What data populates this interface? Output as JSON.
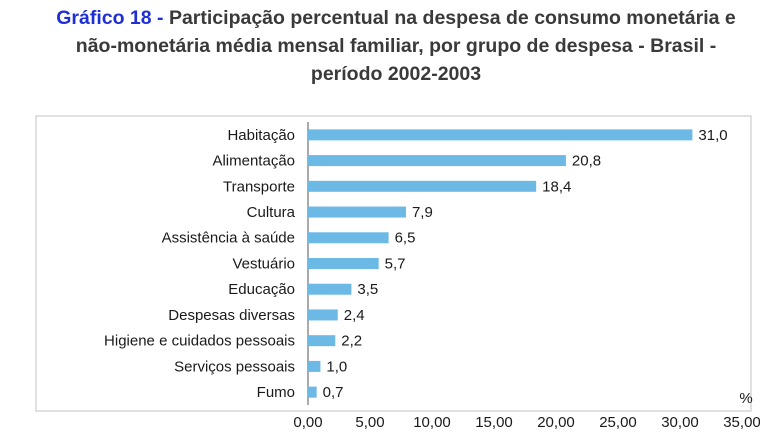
{
  "chart_data": {
    "type": "barh",
    "title_label": "Gráfico 18 -",
    "title": "Participação percentual na despesa de consumo monetária e não-monetária média mensal familiar, por grupo de despesa - Brasil - período 2002-2003",
    "xlabel": "%",
    "categories": [
      "Habitação",
      "Alimentação",
      "Transporte",
      "Cultura",
      "Assistência à saúde",
      "Vestuário",
      "Educação",
      "Despesas diversas",
      "Higiene e cuidados pessoais",
      "Serviços pessoais",
      "Fumo"
    ],
    "values": [
      31.0,
      20.8,
      18.4,
      7.9,
      6.5,
      5.7,
      3.5,
      2.4,
      2.2,
      1.0,
      0.7
    ],
    "value_labels": [
      "31,0",
      "20,8",
      "18,4",
      "7,9",
      "6,5",
      "5,7",
      "3,5",
      "2,4",
      "2,2",
      "1,0",
      "0,7"
    ],
    "color": "#6cb9e6",
    "xlim": [
      0,
      35
    ],
    "xticks": [
      {
        "value": 0,
        "label": "0,00"
      },
      {
        "value": 5,
        "label": "5,00"
      },
      {
        "value": 10,
        "label": "10,00"
      },
      {
        "value": 15,
        "label": "15,00"
      },
      {
        "value": 20,
        "label": "20,00"
      },
      {
        "value": 25,
        "label": "25,00"
      },
      {
        "value": 30,
        "label": "30,00"
      },
      {
        "value": 35,
        "label": "35,00"
      }
    ]
  }
}
